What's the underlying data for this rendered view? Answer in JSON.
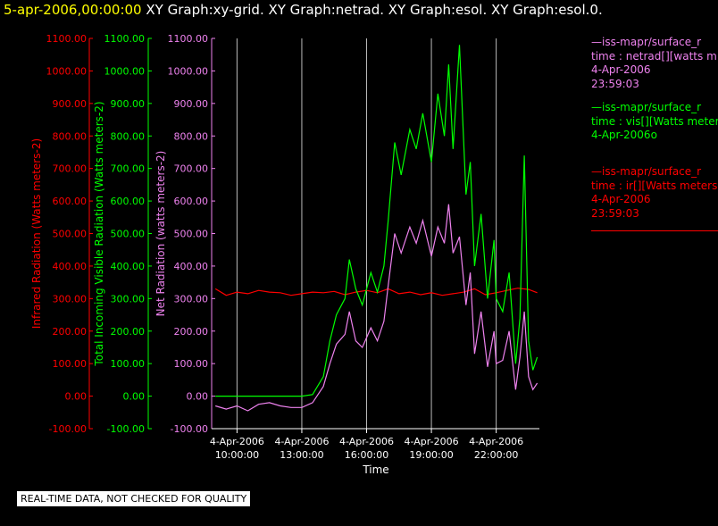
{
  "title": {
    "date": "5-apr-2006,00:00:00",
    "graphs": "XY Graph:xy-grid.  XY Graph:netrad.  XY Graph:esol.  XY Graph:esol.0."
  },
  "colors": {
    "background": "#000000",
    "infrared": "#ff0000",
    "visible": "#00ff00",
    "net": "#ee82ee",
    "axis": "#ffffff",
    "grid": "#bbbbbb"
  },
  "legend": [
    {
      "source": "—iss-mapr/surface_r",
      "field": "time : netrad[][watts m",
      "date": "4-Apr-2006",
      "time": "23:59:03",
      "color": "#ee82ee"
    },
    {
      "source": "—iss-mapr/surface_r",
      "field": "time : vis[][Watts meter",
      "date": "4-Apr-2006o",
      "time": "",
      "color": "#00ff00"
    },
    {
      "source": "—iss-mapr/surface_r",
      "field": "time : ir[][Watts meters",
      "date": "4-Apr-2006",
      "time": "23:59:03",
      "color": "#ff0000"
    }
  ],
  "quality_note": "REAL-TIME DATA, NOT CHECKED FOR QUALITY",
  "chart_data": {
    "type": "line",
    "xlabel": "Time",
    "x_ticks": [
      {
        "date": "4-Apr-2006",
        "time": "10:00:00",
        "hour": 10
      },
      {
        "date": "4-Apr-2006",
        "time": "13:00:00",
        "hour": 13
      },
      {
        "date": "4-Apr-2006",
        "time": "16:00:00",
        "hour": 16
      },
      {
        "date": "4-Apr-2006",
        "time": "19:00:00",
        "hour": 19
      },
      {
        "date": "4-Apr-2006",
        "time": "22:00:00",
        "hour": 22
      }
    ],
    "xlim": [
      8.95,
      24.0
    ],
    "grid": "vertical",
    "y_axes": [
      {
        "label": "Infrared Radiation (Watts meters-2)",
        "color": "#ff0000",
        "ylim": [
          -100,
          1100
        ]
      },
      {
        "label": "Total Incoming Visible Radiation (Watts meters-2)",
        "color": "#00ff00",
        "ylim": [
          -100,
          1100
        ]
      },
      {
        "label": "Net Radiation (watts meters-2)",
        "color": "#ee82ee",
        "ylim": [
          -100,
          1100
        ]
      }
    ],
    "y_ticks": [
      "-100.00",
      "0.00",
      "100.00",
      "200.00",
      "300.00",
      "400.00",
      "500.00",
      "600.00",
      "700.00",
      "800.00",
      "900.00",
      "1000.00",
      "1100.00"
    ],
    "series": [
      {
        "name": "ir",
        "color": "#ff0000",
        "x": [
          9.0,
          9.5,
          10.0,
          10.5,
          11.0,
          11.5,
          12.0,
          12.5,
          13.0,
          13.5,
          14.0,
          14.5,
          15.0,
          15.5,
          16.0,
          16.5,
          17.0,
          17.5,
          18.0,
          18.5,
          19.0,
          19.5,
          20.0,
          20.5,
          21.0,
          21.5,
          22.0,
          22.5,
          23.0,
          23.5,
          23.9
        ],
        "y": [
          330,
          310,
          320,
          315,
          325,
          320,
          318,
          310,
          315,
          320,
          318,
          322,
          312,
          320,
          325,
          318,
          330,
          315,
          320,
          312,
          318,
          310,
          315,
          320,
          330,
          312,
          318,
          325,
          332,
          328,
          318
        ]
      },
      {
        "name": "vis",
        "color": "#00ff00",
        "x": [
          9.0,
          10.0,
          11.0,
          12.0,
          13.0,
          13.5,
          14.0,
          14.3,
          14.6,
          15.0,
          15.2,
          15.5,
          15.8,
          16.2,
          16.5,
          16.8,
          17.0,
          17.3,
          17.6,
          18.0,
          18.3,
          18.6,
          19.0,
          19.3,
          19.6,
          19.8,
          20.0,
          20.3,
          20.6,
          20.8,
          21.0,
          21.3,
          21.6,
          21.9,
          22.0,
          22.3,
          22.6,
          22.9,
          23.1,
          23.3,
          23.5,
          23.7,
          23.9
        ],
        "y": [
          0,
          0,
          0,
          0,
          0,
          5,
          60,
          170,
          250,
          300,
          420,
          330,
          280,
          380,
          320,
          400,
          540,
          780,
          680,
          820,
          760,
          870,
          720,
          930,
          800,
          1020,
          760,
          1080,
          620,
          720,
          400,
          560,
          300,
          480,
          300,
          260,
          380,
          100,
          240,
          740,
          170,
          80,
          120
        ]
      },
      {
        "name": "netrad",
        "color": "#ee82ee",
        "x": [
          9.0,
          9.5,
          10.0,
          10.5,
          11.0,
          11.5,
          12.0,
          12.5,
          13.0,
          13.5,
          14.0,
          14.3,
          14.6,
          15.0,
          15.2,
          15.5,
          15.8,
          16.2,
          16.5,
          16.8,
          17.0,
          17.3,
          17.6,
          18.0,
          18.3,
          18.6,
          19.0,
          19.3,
          19.6,
          19.8,
          20.0,
          20.3,
          20.6,
          20.8,
          21.0,
          21.3,
          21.6,
          21.9,
          22.0,
          22.3,
          22.6,
          22.9,
          23.1,
          23.3,
          23.5,
          23.7,
          23.9
        ],
        "y": [
          -30,
          -40,
          -30,
          -45,
          -25,
          -20,
          -30,
          -35,
          -35,
          -20,
          30,
          100,
          160,
          190,
          260,
          170,
          150,
          210,
          170,
          230,
          340,
          500,
          440,
          520,
          470,
          540,
          430,
          520,
          470,
          590,
          440,
          490,
          280,
          380,
          130,
          260,
          90,
          200,
          100,
          110,
          200,
          20,
          120,
          260,
          60,
          20,
          40
        ]
      }
    ]
  }
}
